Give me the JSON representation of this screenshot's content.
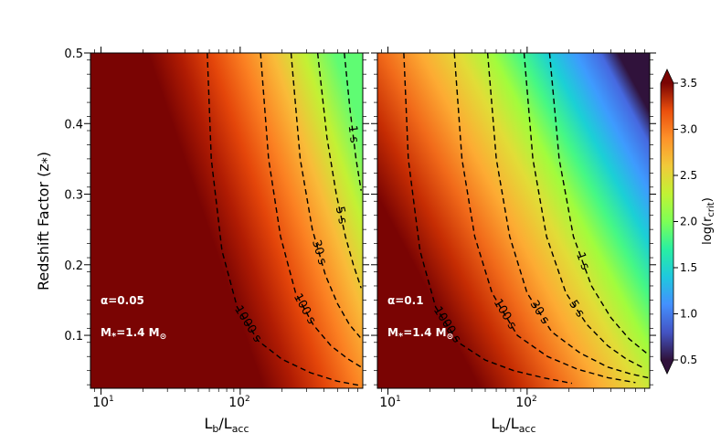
{
  "chart_data": {
    "type": "heatmap",
    "y_label": "Redshift Factor (z",
    "y_label_sub": "*",
    "x_label": "L",
    "x_label_sub1": "b",
    "x_label_mid": "/L",
    "x_label_sub2": "acc",
    "x_scale": "log",
    "xlim": [
      8.4,
      760
    ],
    "ylim": [
      0.025,
      0.5
    ],
    "y_ticks": [
      "0.1",
      "0.2",
      "0.3",
      "0.4",
      "0.5"
    ],
    "x_tick_base": "10",
    "x_tick_exps": [
      "1",
      "2"
    ],
    "colorbar": {
      "label": "log(r",
      "label_sub": "crit",
      "label_end": ")",
      "range": [
        0.5,
        3.5
      ],
      "ticks": [
        "0.5",
        "1.0",
        "1.5",
        "2.0",
        "2.5",
        "3.0",
        "3.5"
      ],
      "colormap": "turbo"
    },
    "panels": [
      {
        "alpha_label": "α=0.05",
        "mass_label": "M",
        "mass_sub": "*",
        "mass_value": "=1.4 M",
        "mass_sym": "⊙",
        "contours": [
          {
            "label": "1000 s",
            "points": [
              [
                58,
                0.5
              ],
              [
                62,
                0.35
              ],
              [
                74,
                0.22
              ],
              [
                95,
                0.14
              ],
              [
                135,
                0.092
              ],
              [
                200,
                0.066
              ],
              [
                320,
                0.047
              ],
              [
                500,
                0.035
              ],
              [
                720,
                0.029
              ]
            ]
          },
          {
            "label": "100 s",
            "points": [
              [
                140,
                0.5
              ],
              [
                160,
                0.35
              ],
              [
                195,
                0.24
              ],
              [
                250,
                0.16
              ],
              [
                335,
                0.115
              ],
              [
                450,
                0.085
              ],
              [
                600,
                0.066
              ],
              [
                740,
                0.055
              ]
            ]
          },
          {
            "label": "30 s",
            "points": [
              [
                232,
                0.5
              ],
              [
                270,
                0.35
              ],
              [
                330,
                0.25
              ],
              [
                410,
                0.185
              ],
              [
                500,
                0.145
              ],
              [
                610,
                0.115
              ],
              [
                730,
                0.097
              ]
            ]
          },
          {
            "label": "5 s",
            "points": [
              [
                360,
                0.5
              ],
              [
                420,
                0.38
              ],
              [
                490,
                0.3
              ],
              [
                570,
                0.24
              ],
              [
                650,
                0.2
              ],
              [
                740,
                0.167
              ]
            ]
          },
          {
            "label": "1 s",
            "points": [
              [
                560,
                0.5
              ],
              [
                615,
                0.42
              ],
              [
                680,
                0.35
              ],
              [
                740,
                0.305
              ]
            ]
          }
        ]
      },
      {
        "alpha_label": "α=0.1",
        "mass_label": "M",
        "mass_sub": "*",
        "mass_value": "=1.4 M",
        "mass_sym": "⊙",
        "contours": [
          {
            "label": "1000 s",
            "points": [
              [
                13,
                0.5
              ],
              [
                14,
                0.35
              ],
              [
                17,
                0.22
              ],
              [
                22,
                0.14
              ],
              [
                32,
                0.09
              ],
              [
                50,
                0.065
              ],
              [
                80,
                0.05
              ],
              [
                130,
                0.04
              ],
              [
                210,
                0.032
              ]
            ]
          },
          {
            "label": "100 s",
            "points": [
              [
                30,
                0.5
              ],
              [
                34,
                0.35
              ],
              [
                42,
                0.24
              ],
              [
                56,
                0.16
              ],
              [
                85,
                0.1
              ],
              [
                140,
                0.07
              ],
              [
                230,
                0.052
              ],
              [
                380,
                0.04
              ],
              [
                600,
                0.033
              ]
            ]
          },
          {
            "label": "30 s",
            "points": [
              [
                52,
                0.5
              ],
              [
                60,
                0.35
              ],
              [
                75,
                0.24
              ],
              [
                100,
                0.16
              ],
              [
                150,
                0.105
              ],
              [
                240,
                0.075
              ],
              [
                380,
                0.055
              ],
              [
                560,
                0.045
              ],
              [
                740,
                0.04
              ]
            ]
          },
          {
            "label": "5 s",
            "points": [
              [
                95,
                0.5
              ],
              [
                110,
                0.35
              ],
              [
                138,
                0.24
              ],
              [
                190,
                0.16
              ],
              [
                270,
                0.115
              ],
              [
                380,
                0.085
              ],
              [
                520,
                0.066
              ],
              [
                700,
                0.053
              ]
            ]
          },
          {
            "label": "1 s",
            "points": [
              [
                145,
                0.5
              ],
              [
                170,
                0.35
              ],
              [
                215,
                0.24
              ],
              [
                290,
                0.17
              ],
              [
                400,
                0.125
              ],
              [
                540,
                0.095
              ],
              [
                740,
                0.073
              ]
            ]
          }
        ]
      }
    ]
  }
}
